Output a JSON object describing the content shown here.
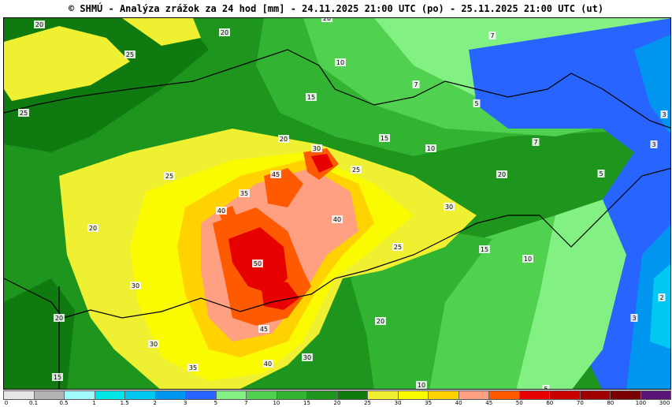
{
  "title": "© SHMÚ - Analýza zrážok za 24 hod [mm] - 24.11.2025 21:00 UTC (po) - 25.11.2025 21:00 UTC (ut)",
  "colors": {
    "0": "#ffffff",
    "0.1": "#e6e6e6",
    "0.5": "#b4b4b4",
    "1": "#a0fafa",
    "1.5": "#00e6e6",
    "2": "#00c8f0",
    "3": "#0096f0",
    "5": "#2864ff",
    "7": "#82f082",
    "10": "#50d250",
    "15": "#32b432",
    "20": "#1e961e",
    "25": "#0f7a0f",
    "30": "#f0f032",
    "35": "#fafa00",
    "40": "#ffd200",
    "45": "#ffa082",
    "50": "#ff5a00",
    "60": "#e60000",
    "70": "#c80000",
    "80": "#a00000",
    "100": "#780000",
    "300": "#5a1478"
  },
  "legend": {
    "ticks": [
      "0",
      "0.1",
      "0.5",
      "1",
      "1.5",
      "2",
      "3",
      "5",
      "7",
      "10",
      "15",
      "20",
      "25",
      "30",
      "35",
      "40",
      "45",
      "50",
      "60",
      "70",
      "80",
      "100",
      "300"
    ]
  },
  "map_labels": [
    "20",
    "20",
    "20",
    "25",
    "25",
    "25",
    "10",
    "7",
    "7",
    "15",
    "15",
    "20",
    "30",
    "45",
    "25",
    "10",
    "7",
    "5",
    "5",
    "3",
    "20",
    "35",
    "40",
    "40",
    "20",
    "50",
    "30",
    "15",
    "10",
    "25",
    "30",
    "30",
    "45",
    "20",
    "35",
    "40",
    "30",
    "10",
    "5",
    "3",
    "15",
    "20",
    "2",
    "3"
  ]
}
